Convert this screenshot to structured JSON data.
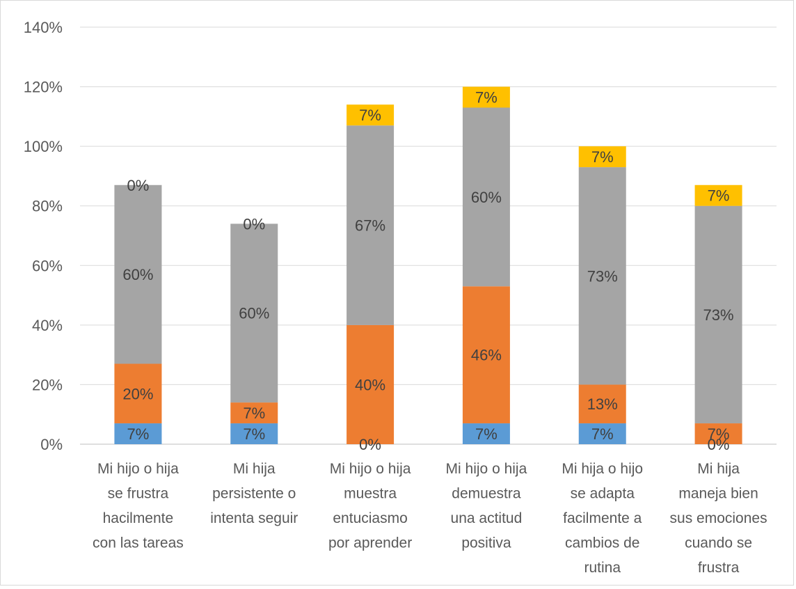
{
  "chart_data": {
    "type": "bar",
    "stacked": true,
    "title": "",
    "xlabel": "",
    "ylabel": "",
    "ylim": [
      0,
      1.4
    ],
    "yticks": [
      0,
      0.2,
      0.4,
      0.6,
      0.8,
      1.0,
      1.2,
      1.4
    ],
    "ytick_labels": [
      "0%",
      "20%",
      "40%",
      "60%",
      "80%",
      "100%",
      "120%",
      "140%"
    ],
    "grid": true,
    "legend": "none",
    "categories": [
      [
        "Mi hijo o hija",
        "se frustra",
        "hacilmente",
        "con las tareas"
      ],
      [
        "Mi hija",
        "persistente o",
        "intenta seguir"
      ],
      [
        "Mi hijo o hija",
        "muestra",
        "entuciasmo",
        "por aprender"
      ],
      [
        "Mi hijo o hija",
        "demuestra",
        "una actitud",
        "positiva"
      ],
      [
        "Mi hija o hijo",
        "se adapta",
        "facilmente a",
        "cambios de",
        "rutina"
      ],
      [
        "Mi hija",
        "maneja bien",
        "sus emociones",
        "cuando se",
        "frustra"
      ]
    ],
    "series": [
      {
        "color": "#5b9bd5",
        "values": [
          0.07,
          0.07,
          0.0,
          0.07,
          0.07,
          0.0
        ],
        "labels": [
          "7%",
          "7%",
          "0%",
          "7%",
          "7%",
          "0%"
        ]
      },
      {
        "color": "#ed7d31",
        "values": [
          0.2,
          0.07,
          0.4,
          0.46,
          0.13,
          0.07
        ],
        "labels": [
          "20%",
          "7%",
          "40%",
          "46%",
          "13%",
          "7%"
        ]
      },
      {
        "color": "#a5a5a5",
        "values": [
          0.6,
          0.6,
          0.67,
          0.6,
          0.73,
          0.73
        ],
        "labels": [
          "60%",
          "60%",
          "67%",
          "60%",
          "73%",
          "73%"
        ]
      },
      {
        "color": "#ffc000",
        "values": [
          0.0,
          0.0,
          0.07,
          0.07,
          0.07,
          0.07
        ],
        "labels": [
          "0%",
          "0%",
          "7%",
          "7%",
          "7%",
          "7%"
        ]
      }
    ]
  }
}
